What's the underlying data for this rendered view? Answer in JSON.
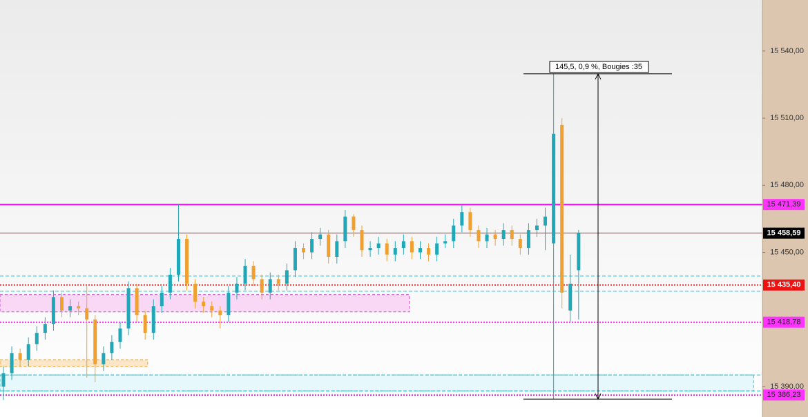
{
  "chart_data": {
    "type": "candlestick",
    "ylim": [
      15376.4,
      15562.8
    ],
    "yticks": [
      {
        "value": 15390,
        "label": "15 390,00"
      },
      {
        "value": 15450,
        "label": "15 450,00"
      },
      {
        "value": 15480,
        "label": "15 480,00"
      },
      {
        "value": 15510,
        "label": "15 510,00"
      },
      {
        "value": 15540,
        "label": "15 540,00"
      }
    ],
    "up_color": "#20a8b8",
    "down_color": "#f0a030",
    "open": [
      15390,
      15396,
      15405,
      15402,
      15409,
      15414,
      15418,
      15430,
      15424,
      15426,
      15425,
      15420,
      15400,
      15405,
      15410,
      15416,
      15434,
      15422,
      15414,
      15426,
      15432,
      15440,
      15456,
      15436,
      15428,
      15426,
      15424,
      15422,
      15432,
      15436,
      15444,
      15438,
      15432,
      15438,
      15436,
      15442,
      15452,
      15450,
      15456,
      15458,
      15448,
      15455,
      15466,
      15460,
      15451,
      15452,
      15454,
      15449,
      15452,
      15455,
      15450,
      15452,
      15449,
      15454,
      15455,
      15462,
      15468,
      15460,
      15455,
      15458,
      15456,
      15460,
      15456,
      15452,
      15460,
      15462,
      15454,
      15507,
      15424,
      15442
    ],
    "high": [
      15399,
      15408,
      15407,
      15412,
      15417,
      15421,
      15433,
      15432,
      15429,
      15428,
      15435,
      15422,
      15408,
      15413,
      15419,
      15437,
      15436,
      15424,
      15429,
      15435,
      15443,
      15471.39,
      15458,
      15438,
      15430,
      15428,
      15426,
      15435,
      15439,
      15447,
      15446,
      15440,
      15441,
      15440,
      15445,
      15455,
      15454,
      15459,
      15461,
      15460,
      15458,
      15469,
      15467,
      15462,
      15455,
      15457,
      15456,
      15455,
      15458,
      15457,
      15455,
      15454,
      15457,
      15458,
      15465,
      15471,
      15470,
      15462,
      15461,
      15460,
      15463,
      15462,
      15458,
      15463,
      15465,
      15470,
      15529.8,
      15510,
      15449,
      15460
    ],
    "low": [
      15384,
      15393,
      15399,
      15399,
      15406,
      15411,
      15415,
      15421,
      15421,
      15422,
      15394,
      15392,
      15397,
      15402,
      15407,
      15413,
      15419,
      15411,
      15411,
      15423,
      15429,
      15437,
      15433,
      15425,
      15423,
      15421,
      15416,
      15419,
      15429,
      15433,
      15435,
      15429,
      15429,
      15433,
      15433,
      15439,
      15447,
      15447,
      15453,
      15445,
      15445,
      15452,
      15457,
      15448,
      15448,
      15449,
      15446,
      15446,
      15449,
      15447,
      15447,
      15446,
      15446,
      15452,
      15452,
      15459,
      15457,
      15452,
      15452,
      15453,
      15453,
      15453,
      15449,
      15449,
      15457,
      15451,
      15384.4,
      15425,
      15419,
      15420
    ],
    "close": [
      15396,
      15405,
      15402,
      15409,
      15414,
      15418,
      15430,
      15424,
      15426,
      15425,
      15420,
      15400,
      15405,
      15410,
      15416,
      15434,
      15422,
      15414,
      15426,
      15432,
      15440,
      15456,
      15436,
      15428,
      15426,
      15424,
      15422,
      15432,
      15436,
      15444,
      15438,
      15432,
      15438,
      15436,
      15442,
      15452,
      15450,
      15456,
      15458,
      15448,
      15455,
      15466,
      15460,
      15451,
      15452,
      15454,
      15449,
      15452,
      15455,
      15450,
      15452,
      15449,
      15454,
      15455,
      15462,
      15468,
      15460,
      15455,
      15458,
      15456,
      15460,
      15456,
      15452,
      15460,
      15462,
      15466,
      15503,
      15432,
      15436,
      15458.59
    ],
    "levels": [
      {
        "value": 15471.39,
        "label": "15 471,39",
        "color": "#ff00ff",
        "style": "solid"
      },
      {
        "value": 15458.59,
        "label": "15 458,59",
        "color": "#d02020",
        "style": "solid"
      },
      {
        "value": 15435.4,
        "label": "15 435,40",
        "color": "#d02020",
        "style": "dotted"
      },
      {
        "value": 15418.78,
        "label": "15 418,78",
        "color": "#cc00cc",
        "style": "dotted"
      },
      {
        "value": 15386.23,
        "label": "15 386,23",
        "color": "#cc00cc",
        "style": "dotted"
      }
    ],
    "guides": [
      15439.4,
      15432.6,
      15395.2,
      15388.1
    ],
    "zones": [
      {
        "top": 15431.1,
        "bottom": 15423.4,
        "x_end": 48.7,
        "color": "#f8d8f4",
        "border": "#cc44cc"
      },
      {
        "top": 15402,
        "bottom": 15399,
        "x_end": 17.3,
        "color": "#fbe6c8",
        "border": "#f0a030"
      },
      {
        "top": 15395.2,
        "bottom": 15388.1,
        "x_end": 90,
        "color": "#e6f8fb",
        "border": "#20c0d0"
      }
    ],
    "measure": {
      "text": "145,5, 0,9 %, Bougies :35",
      "top": 15529.8,
      "bottom": 15384.4
    }
  }
}
